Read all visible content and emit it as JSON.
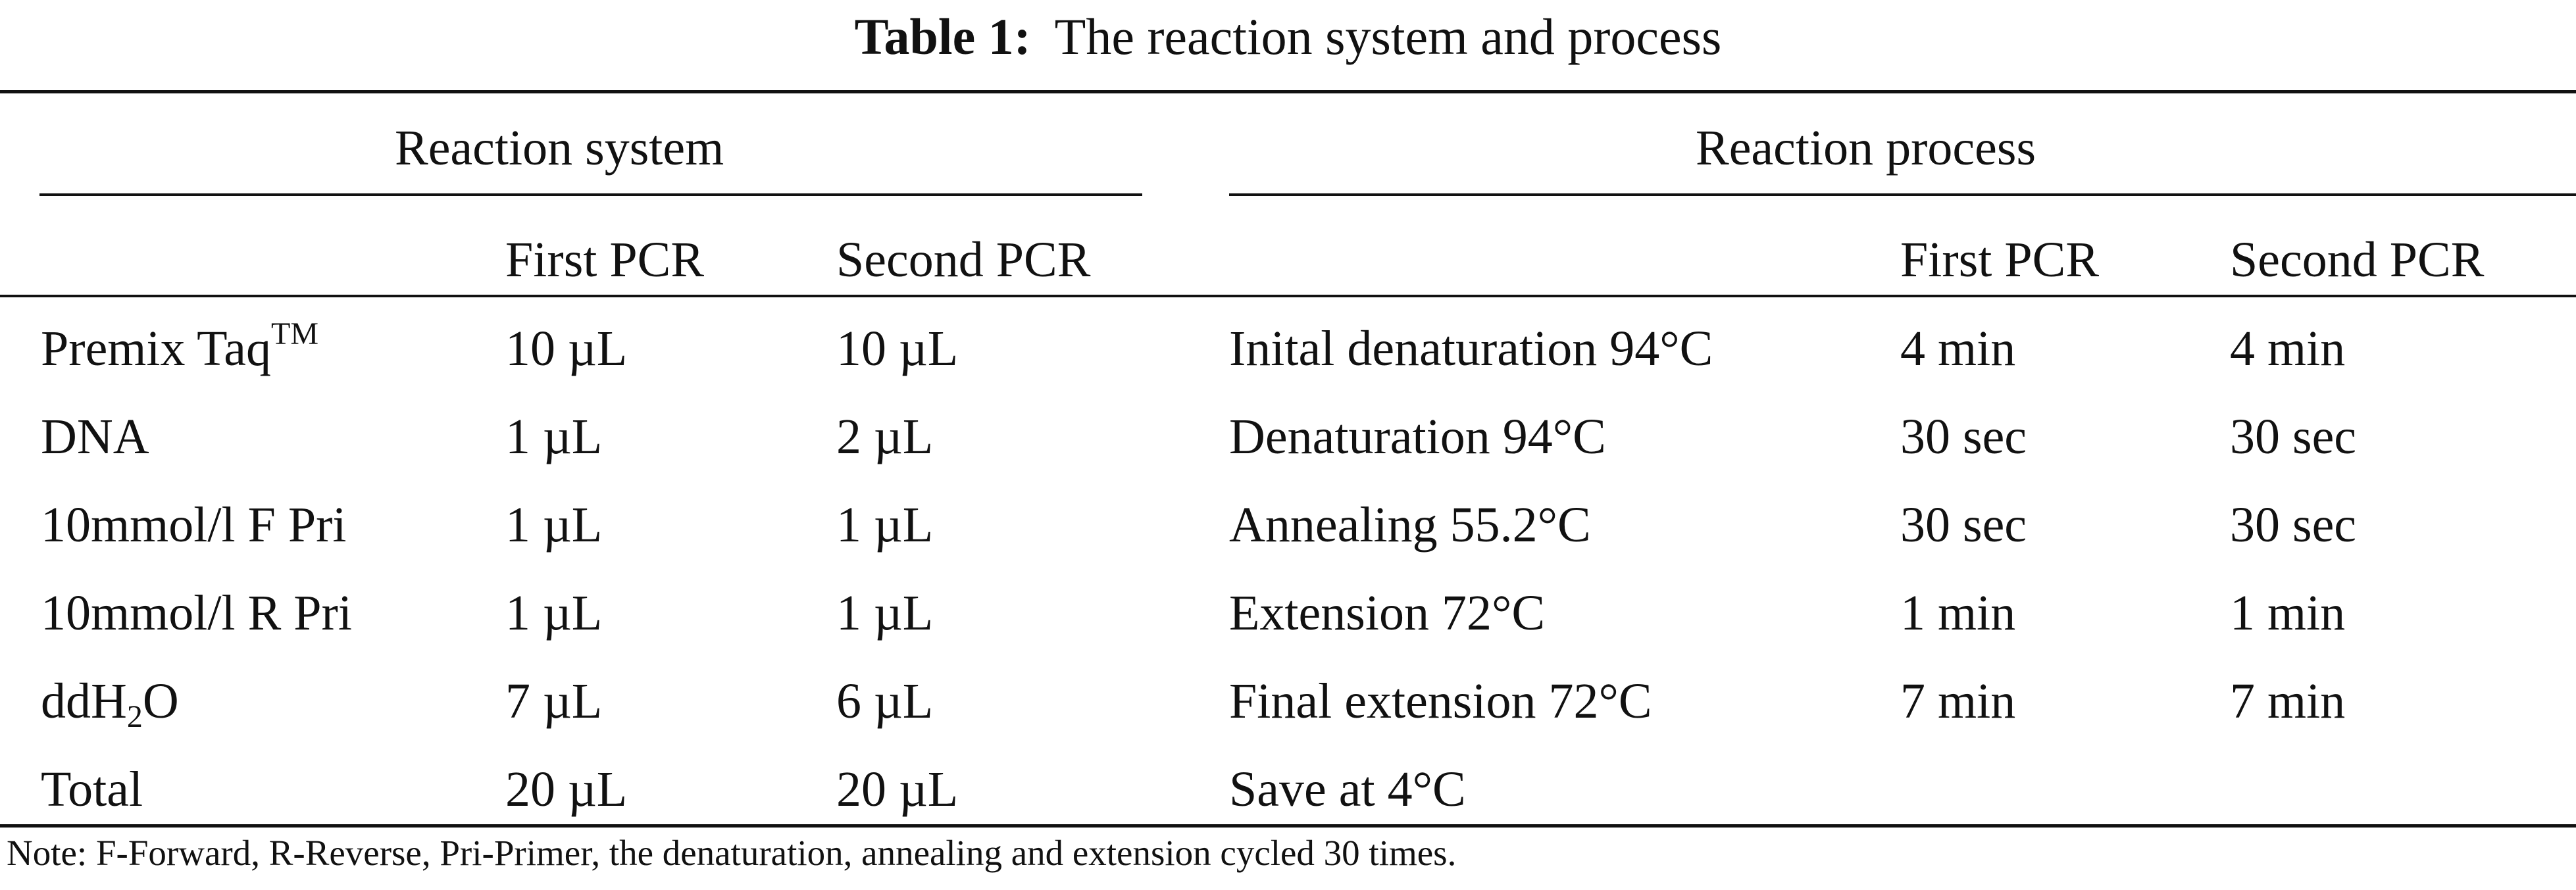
{
  "caption": {
    "label": "Table 1:",
    "text": "The reaction system and process"
  },
  "groups": {
    "system": "Reaction system",
    "process": "Reaction process"
  },
  "columns": {
    "sys_first": "First PCR",
    "sys_second": "Second PCR",
    "proc_first": "First PCR",
    "proc_second": "Second PCR"
  },
  "rows": [
    {
      "component": "Premix Taq",
      "component_sup": "TM",
      "sys_first": "10 µL",
      "sys_second": "10 µL",
      "step": "Inital denaturation 94°C",
      "proc_first": "4 min",
      "proc_second": "4 min"
    },
    {
      "component": "DNA",
      "sys_first": "1 µL",
      "sys_second": "2 µL",
      "step": "Denaturation 94°C",
      "proc_first": "30 sec",
      "proc_second": "30 sec"
    },
    {
      "component": "10mmol/l F Pri",
      "sys_first": "1 µL",
      "sys_second": "1 µL",
      "step": "Annealing 55.2°C",
      "proc_first": "30 sec",
      "proc_second": "30 sec"
    },
    {
      "component": "10mmol/l R Pri",
      "sys_first": "1 µL",
      "sys_second": "1 µL",
      "step": "Extension 72°C",
      "proc_first": "1 min",
      "proc_second": "1 min"
    },
    {
      "component_pre": "ddH",
      "component_sub": "2",
      "component_post": "O",
      "sys_first": "7 µL",
      "sys_second": "6 µL",
      "step": "Final extension 72°C",
      "proc_first": "7 min",
      "proc_second": "7 min"
    },
    {
      "component": "Total",
      "sys_first": "20 µL",
      "sys_second": "20 µL",
      "step": "Save at 4°C",
      "proc_first": "",
      "proc_second": ""
    }
  ],
  "note": "Note: F-Forward, R-Reverse, Pri-Primer, the denaturation, annealing and extension cycled 30 times."
}
